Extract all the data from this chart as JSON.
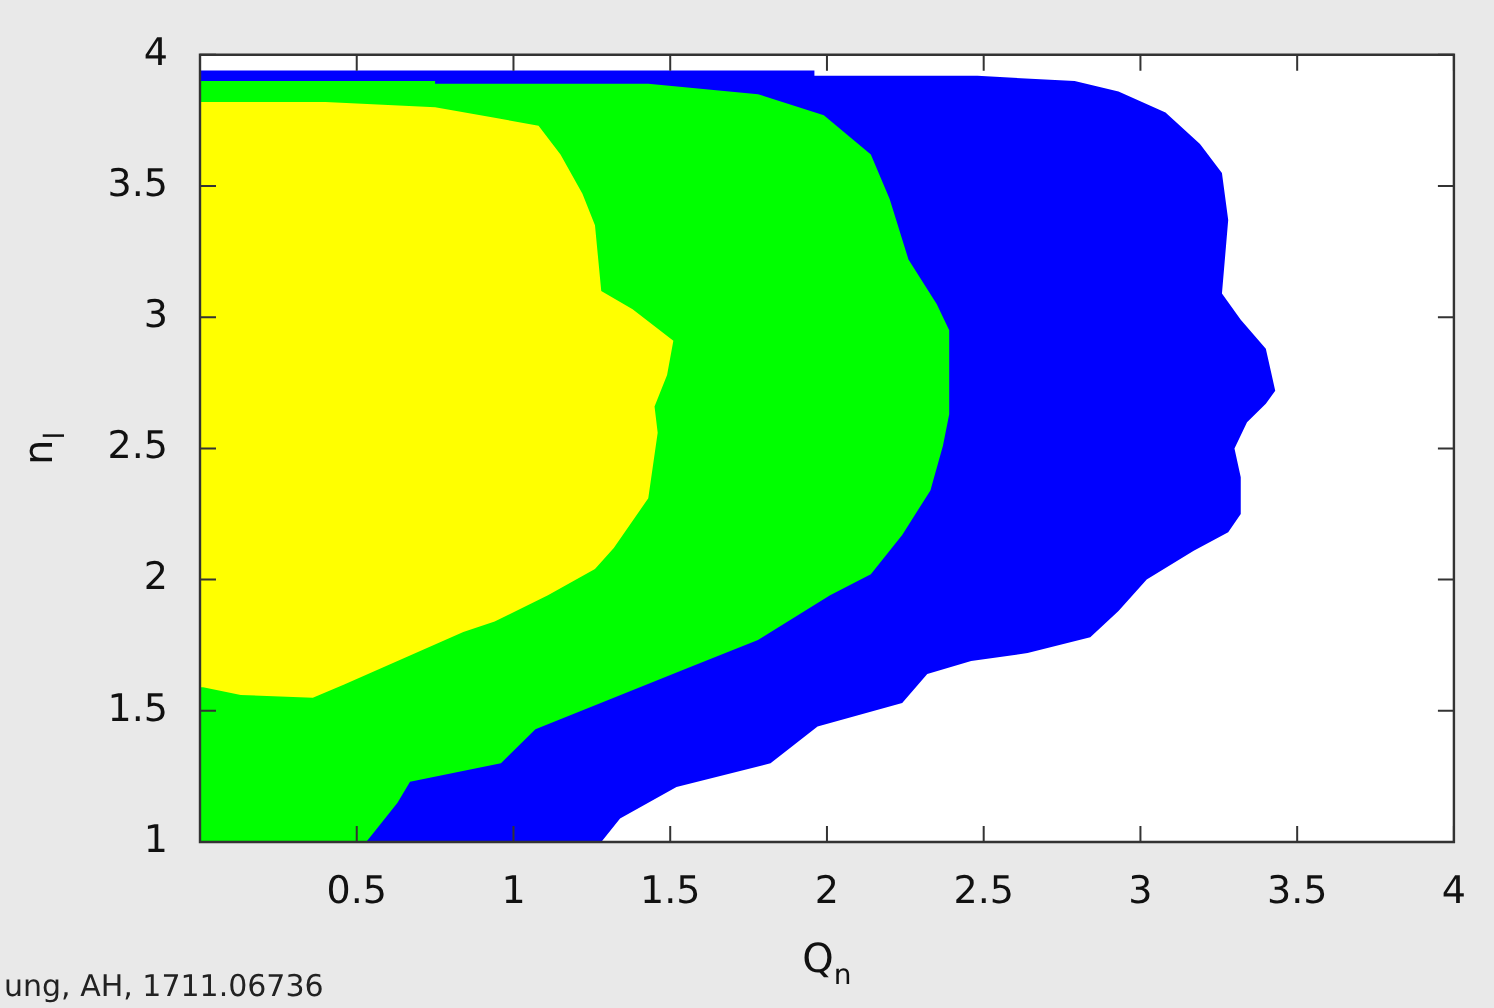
{
  "chart_data": {
    "type": "area",
    "xlabel": "Q$_{n}$",
    "ylabel": "n$_{l}$",
    "xlim": [
      0,
      4
    ],
    "xticks": [
      0.5,
      1,
      1.5,
      2,
      2.5,
      3,
      3.5,
      4
    ],
    "ylim": [
      1,
      4
    ],
    "yticks": [
      1,
      1.5,
      2,
      2.5,
      3,
      3.5,
      4
    ],
    "grid": false,
    "legend": false,
    "annotations": [
      "ung, AH, 1711.06736"
    ],
    "series": [
      {
        "color": "#0000ff",
        "x": [
          0,
          1.96,
          1.96,
          2.48,
          2.79,
          2.93,
          3.08,
          3.19,
          3.26,
          3.28,
          3.26,
          3.32,
          3.4,
          3.43,
          3.4,
          3.34,
          3.3,
          3.32,
          3.32,
          3.28,
          3.17,
          3.02,
          2.93,
          2.84,
          2.64,
          2.46,
          2.32,
          2.24,
          1.97,
          1.82,
          1.52,
          1.34,
          1.28,
          0
        ],
        "values": [
          3.94,
          3.94,
          3.92,
          3.92,
          3.9,
          3.86,
          3.78,
          3.66,
          3.55,
          3.37,
          3.09,
          2.99,
          2.88,
          2.72,
          2.67,
          2.6,
          2.5,
          2.39,
          2.25,
          2.18,
          2.11,
          2.0,
          1.88,
          1.78,
          1.72,
          1.69,
          1.64,
          1.53,
          1.44,
          1.3,
          1.21,
          1.09,
          1.0,
          1.0
        ]
      },
      {
        "color": "#00ff00",
        "x": [
          0,
          0.75,
          0.75,
          1.43,
          1.78,
          1.99,
          2.14,
          2.2,
          2.26,
          2.35,
          2.39,
          2.39,
          2.37,
          2.33,
          2.24,
          2.14,
          2.01,
          1.78,
          1.57,
          1.32,
          1.07,
          0.96,
          0.67,
          0.63,
          0.55,
          0.53,
          0
        ],
        "values": [
          3.9,
          3.9,
          3.89,
          3.89,
          3.85,
          3.77,
          3.62,
          3.45,
          3.22,
          3.05,
          2.95,
          2.63,
          2.51,
          2.34,
          2.17,
          2.02,
          1.94,
          1.77,
          1.67,
          1.55,
          1.43,
          1.3,
          1.23,
          1.15,
          1.03,
          1.0,
          1.0
        ]
      },
      {
        "color": "#ffff00",
        "x": [
          0,
          0.4,
          0.75,
          0.94,
          1.08,
          1.15,
          1.22,
          1.26,
          1.28,
          1.38,
          1.51,
          1.49,
          1.45,
          1.46,
          1.43,
          1.32,
          1.26,
          1.11,
          0.94,
          0.84,
          0.46,
          0.36,
          0.13,
          0.01,
          0
        ],
        "values": [
          3.82,
          3.82,
          3.8,
          3.76,
          3.73,
          3.62,
          3.47,
          3.35,
          3.1,
          3.03,
          2.91,
          2.78,
          2.66,
          2.56,
          2.31,
          2.12,
          2.04,
          1.94,
          1.84,
          1.8,
          1.6,
          1.55,
          1.56,
          1.59,
          1.59
        ]
      }
    ]
  }
}
